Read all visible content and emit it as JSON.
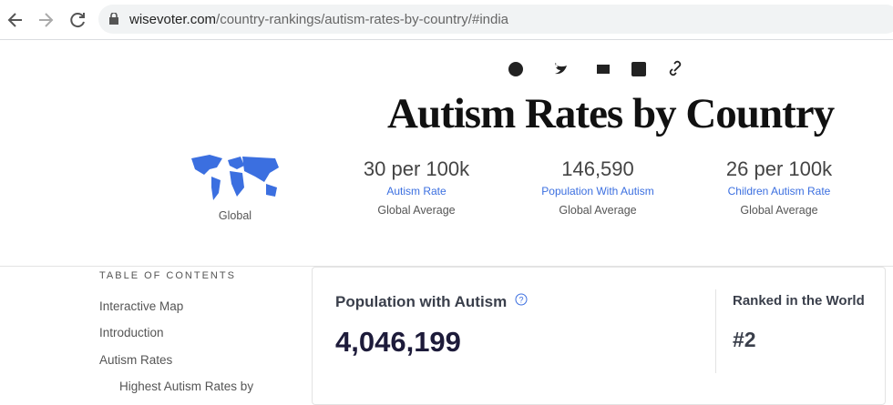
{
  "browser": {
    "url_domain": "wisevoter.com",
    "url_path": "/country-rankings/autism-rates-by-country/#india"
  },
  "header": {
    "title": "Autism Rates by Country",
    "map_label": "Global",
    "stats": [
      {
        "value": "30 per 100k",
        "label": "Autism Rate",
        "note": "Global Average"
      },
      {
        "value": "146,590",
        "label": "Population With Autism",
        "note": "Global Average"
      },
      {
        "value": "26 per 100k",
        "label": "Children Autism Rate",
        "note": "Global Average"
      }
    ]
  },
  "toc": {
    "heading": "TABLE OF CONTENTS",
    "items": [
      "Interactive Map",
      "Introduction",
      "Autism Rates",
      "Highest Autism Rates by"
    ]
  },
  "card": {
    "title": "Population with Autism",
    "value": "4,046,199",
    "rank_title": "Ranked in the World",
    "rank": "#2"
  }
}
